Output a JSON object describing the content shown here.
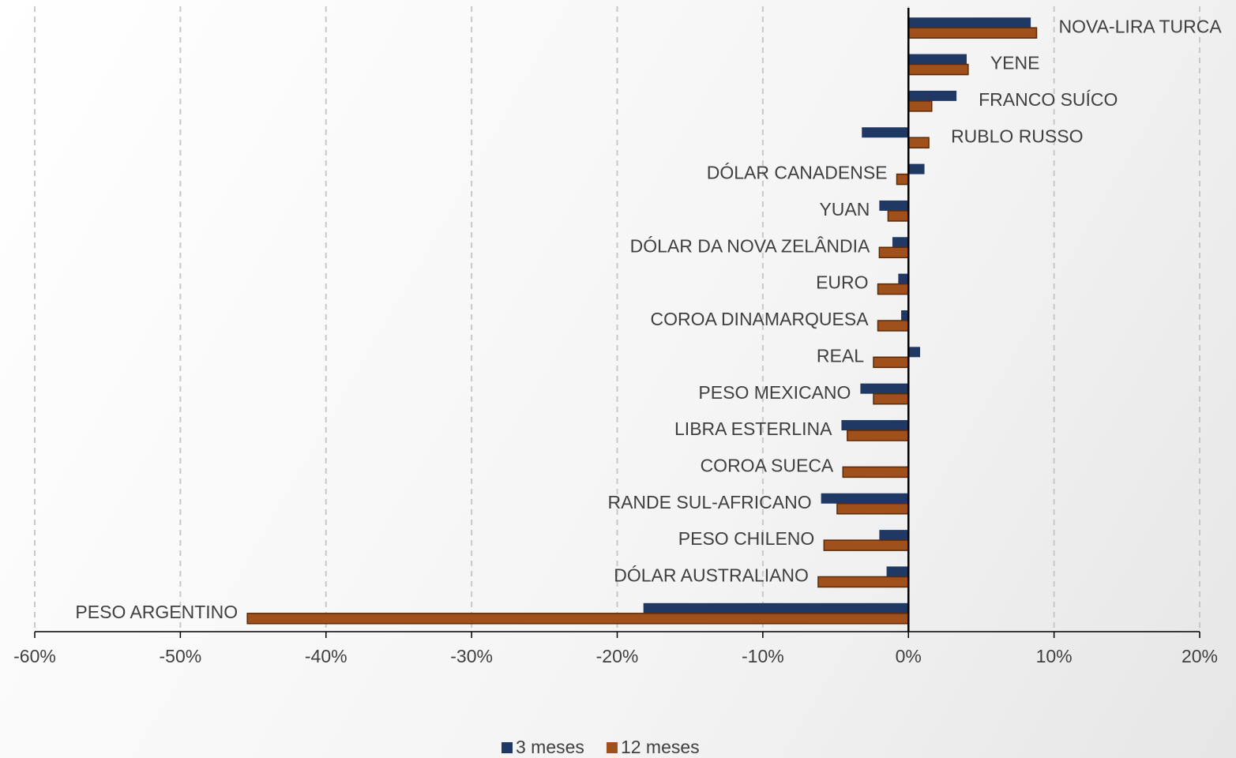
{
  "chart_data": {
    "type": "bar",
    "orientation": "horizontal",
    "categories": [
      "NOVA-LIRA TURCA",
      "YENE",
      "FRANCO SUÍCO",
      "RUBLO RUSSO",
      "DÓLAR CANADENSE",
      "YUAN",
      "DÓLAR DA NOVA ZELÂNDIA",
      "EURO",
      "COROA DINAMARQUESA",
      "REAL",
      "PESO MEXICANO",
      "LIBRA ESTERLINA",
      "COROA SUECA",
      "RANDE SUL-AFRICANO",
      "PESO CHILENO",
      "DÓLAR AUSTRALIANO",
      "PESO ARGENTINO"
    ],
    "series": [
      {
        "name": "3 meses",
        "color": "#1f3864",
        "values": [
          8.4,
          4.0,
          3.3,
          -3.2,
          1.1,
          -2.0,
          -1.1,
          -0.7,
          -0.5,
          0.8,
          -3.3,
          -4.6,
          0,
          -6.0,
          -2.0,
          -1.5,
          -18.2
        ]
      },
      {
        "name": "12 meses",
        "color": "#a0501a",
        "values": [
          8.8,
          4.1,
          1.6,
          1.4,
          -0.8,
          -1.4,
          -2.0,
          -2.1,
          -2.1,
          -2.4,
          -2.4,
          -4.2,
          -4.5,
          -4.9,
          -5.8,
          -6.2,
          -45.4
        ]
      }
    ],
    "xlim": [
      -60,
      20
    ],
    "xticks": [
      {
        "value": -60,
        "label": "-60%"
      },
      {
        "value": -50,
        "label": "-50%"
      },
      {
        "value": -40,
        "label": "-40%"
      },
      {
        "value": -30,
        "label": "-30%"
      },
      {
        "value": -20,
        "label": "-20%"
      },
      {
        "value": -10,
        "label": "-10%"
      },
      {
        "value": 0,
        "label": "0%"
      },
      {
        "value": 10,
        "label": "10%"
      },
      {
        "value": 20,
        "label": "20%"
      }
    ],
    "grid": true,
    "legend": "bottom"
  }
}
